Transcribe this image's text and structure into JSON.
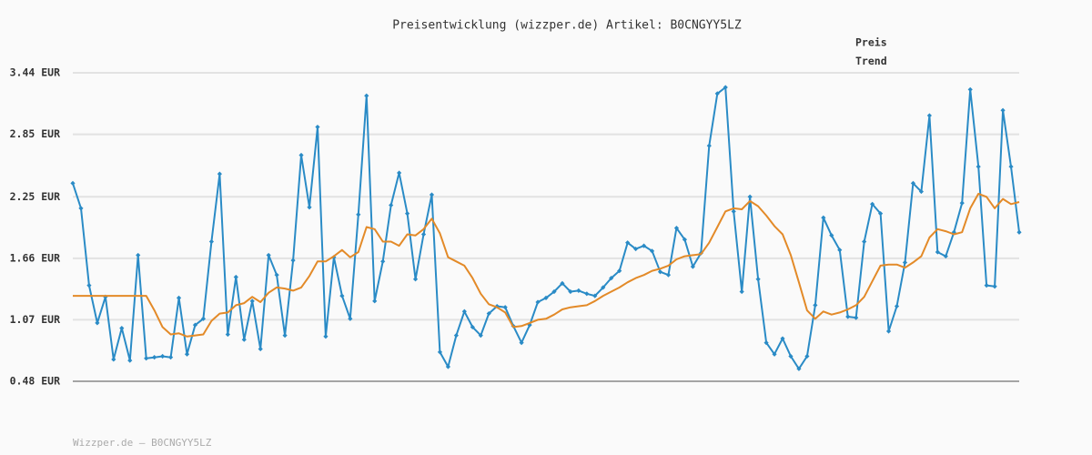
{
  "chart_data": {
    "type": "line",
    "title": "Preisentwicklung (wizzper.de) Artikel: B0CNGYY5LZ",
    "source": "Wizzper.de – B0CNGYY5LZ",
    "legend": "top-right",
    "grid": true,
    "ylim": [
      0.48,
      3.44
    ],
    "yticks": [
      {
        "value": 0.48,
        "label": "0.48 EUR"
      },
      {
        "value": 1.07,
        "label": "1.07 EUR"
      },
      {
        "value": 1.66,
        "label": "1.66 EUR"
      },
      {
        "value": 2.25,
        "label": "2.25 EUR"
      },
      {
        "value": 2.85,
        "label": "2.85 EUR"
      },
      {
        "value": 3.44,
        "label": "3.44 EUR"
      }
    ],
    "categories": [
      null,
      null,
      null,
      null,
      null,
      null,
      null,
      null,
      null,
      null,
      null,
      null,
      null,
      null,
      null,
      null,
      null,
      null,
      null,
      null,
      null,
      null,
      null,
      null,
      null,
      null,
      null,
      null,
      null,
      null,
      null,
      null,
      null,
      null,
      null,
      null,
      null,
      null,
      null,
      null,
      null,
      null,
      null,
      null,
      null,
      null,
      null,
      null,
      null,
      null,
      null,
      null,
      null,
      null,
      null,
      null,
      null,
      null,
      null,
      null,
      null,
      null,
      null,
      null,
      null,
      null,
      null,
      null,
      null,
      null,
      null,
      null,
      null,
      null,
      null,
      null,
      null,
      null,
      null,
      null,
      null,
      null,
      null,
      null,
      null,
      null,
      null,
      null,
      null,
      null,
      null,
      null,
      null,
      null,
      null,
      null,
      null,
      null,
      null,
      null,
      null,
      null,
      null,
      null,
      null,
      null,
      null,
      null,
      null,
      null,
      null,
      null,
      null,
      null,
      null,
      null,
      null
    ],
    "series": [
      {
        "name": "Preis",
        "color": "#2a8bc6",
        "markers": true,
        "values": [
          2.38,
          2.14,
          1.4,
          1.04,
          1.29,
          0.69,
          0.99,
          0.68,
          1.69,
          0.7,
          0.71,
          0.72,
          0.71,
          1.28,
          0.74,
          1.02,
          1.08,
          1.82,
          2.47,
          0.93,
          1.48,
          0.88,
          1.25,
          0.79,
          1.69,
          1.5,
          0.92,
          1.64,
          2.65,
          2.15,
          2.92,
          0.91,
          1.67,
          1.3,
          1.08,
          2.08,
          3.22,
          1.25,
          1.63,
          2.17,
          2.48,
          2.09,
          1.46,
          1.89,
          2.27,
          0.76,
          0.62,
          0.92,
          1.15,
          1.0,
          0.92,
          1.13,
          1.2,
          1.19,
          1.01,
          0.85,
          1.02,
          1.24,
          1.28,
          1.34,
          1.42,
          1.34,
          1.35,
          1.32,
          1.3,
          1.38,
          1.47,
          1.54,
          1.81,
          1.75,
          1.78,
          1.73,
          1.53,
          1.5,
          1.95,
          1.84,
          1.58,
          1.71,
          2.74,
          3.24,
          3.3,
          2.11,
          1.34,
          2.25,
          1.46,
          0.85,
          0.74,
          0.89,
          0.72,
          0.6,
          0.72,
          1.21,
          2.05,
          1.88,
          1.74,
          1.1,
          1.09,
          1.82,
          2.18,
          2.09,
          0.96,
          1.2,
          1.62,
          2.38,
          2.3,
          3.03,
          1.72,
          1.68,
          1.91,
          2.19,
          3.28,
          2.54,
          1.4,
          1.39,
          3.08,
          2.54,
          1.91
        ]
      },
      {
        "name": "Trend",
        "color": "#e38a28",
        "markers": false,
        "values": [
          1.3,
          1.3,
          1.3,
          1.3,
          1.3,
          1.3,
          1.3,
          1.3,
          1.3,
          1.3,
          1.16,
          1.0,
          0.93,
          0.94,
          0.91,
          0.92,
          0.93,
          1.06,
          1.13,
          1.14,
          1.21,
          1.23,
          1.29,
          1.24,
          1.33,
          1.38,
          1.37,
          1.35,
          1.38,
          1.49,
          1.63,
          1.63,
          1.68,
          1.74,
          1.67,
          1.72,
          1.96,
          1.94,
          1.82,
          1.82,
          1.78,
          1.89,
          1.88,
          1.94,
          2.04,
          1.9,
          1.67,
          1.63,
          1.59,
          1.47,
          1.32,
          1.22,
          1.19,
          1.14,
          1.0,
          1.01,
          1.04,
          1.07,
          1.08,
          1.12,
          1.17,
          1.19,
          1.2,
          1.21,
          1.25,
          1.3,
          1.34,
          1.38,
          1.43,
          1.47,
          1.5,
          1.54,
          1.56,
          1.59,
          1.65,
          1.68,
          1.69,
          1.7,
          1.81,
          1.96,
          2.11,
          2.14,
          2.13,
          2.21,
          2.16,
          2.07,
          1.97,
          1.89,
          1.69,
          1.43,
          1.16,
          1.08,
          1.15,
          1.12,
          1.14,
          1.17,
          1.21,
          1.29,
          1.44,
          1.59,
          1.6,
          1.6,
          1.57,
          1.62,
          1.68,
          1.86,
          1.94,
          1.92,
          1.89,
          1.91,
          2.14,
          2.28,
          2.25,
          2.14,
          2.23,
          2.18,
          2.2
        ]
      }
    ]
  }
}
